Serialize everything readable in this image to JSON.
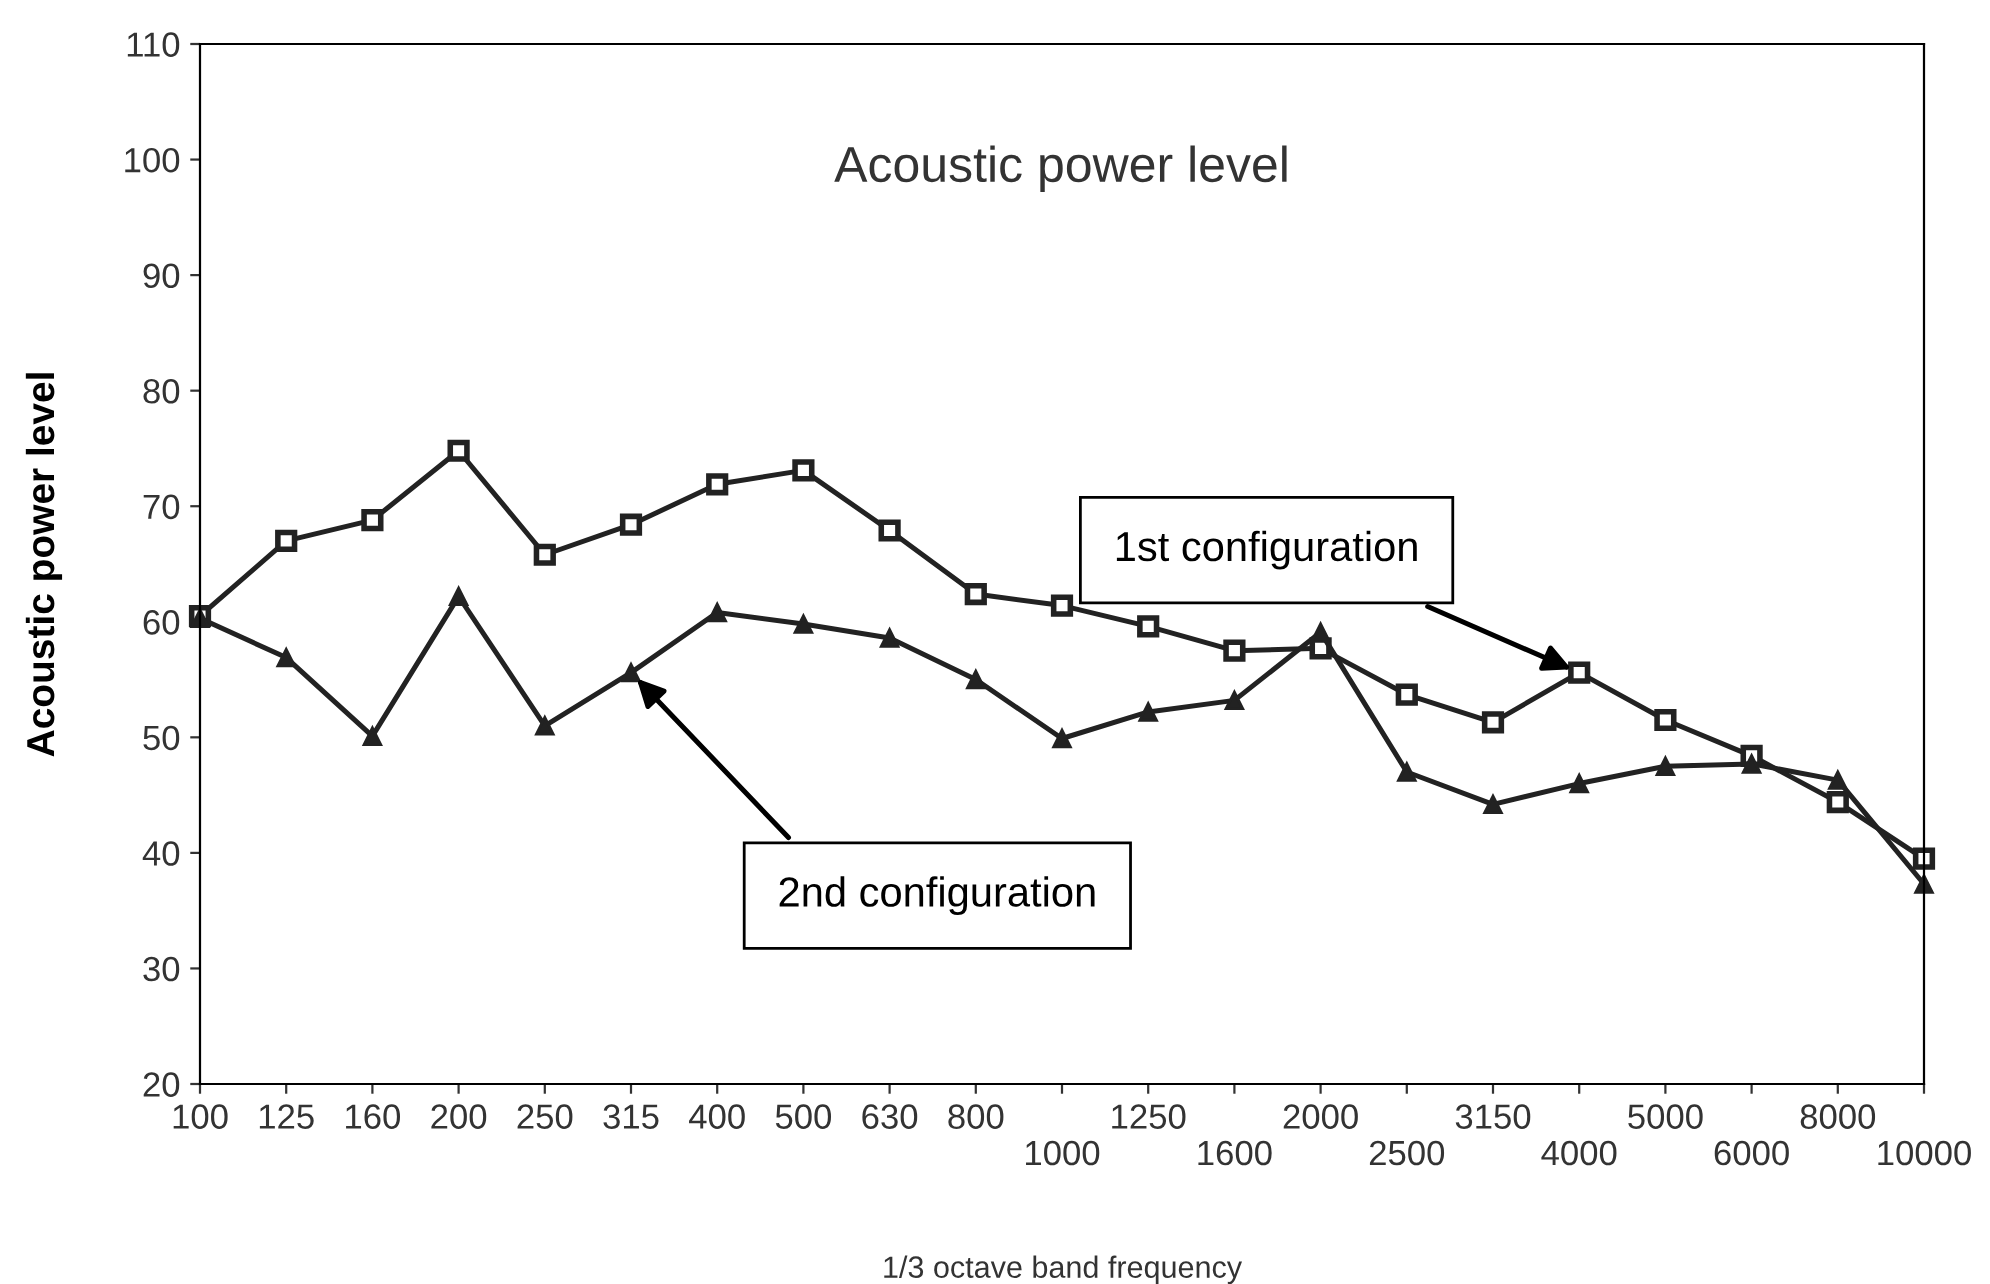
{
  "chart_data": {
    "type": "line",
    "title": "Acoustic power level",
    "xlabel": "1/3 octave band frequency",
    "ylabel": "Acoustic power level",
    "categories": [
      "100",
      "125",
      "160",
      "200",
      "250",
      "315",
      "400",
      "500",
      "630",
      "800",
      "1000",
      "1250",
      "1600",
      "2000",
      "2500",
      "3150",
      "4000",
      "5000",
      "6000",
      "8000",
      "10000"
    ],
    "series": [
      {
        "color": "#222222",
        "marker": "square",
        "values": [
          60.5,
          67,
          68.8,
          74.8,
          65.8,
          68.4,
          71.9,
          73.1,
          67.9,
          62.4,
          61.4,
          59.6,
          57.5,
          57.7,
          53.7,
          51.3,
          55.6,
          51.5,
          48.4,
          44.4,
          39.5
        ]
      },
      {
        "color": "#222222",
        "marker": "triangle",
        "values": [
          60.3,
          56.9,
          50.1,
          62.2,
          51,
          55.6,
          60.8,
          59.8,
          58.6,
          55,
          49.9,
          52.2,
          53.2,
          59.1,
          47,
          44.2,
          46,
          47.5,
          47.7,
          46.3,
          37.3
        ]
      }
    ],
    "annotations": [
      {
        "text": "1st configuration",
        "x": "4000",
        "y": 55.6
      },
      {
        "text": "2nd configuration",
        "x": "315",
        "y": 55.6
      }
    ],
    "ylim": [
      20,
      110
    ],
    "yticks": [
      20,
      30,
      40,
      50,
      60,
      70,
      80,
      90,
      100,
      110
    ],
    "grid": false,
    "line_style": "solid"
  }
}
